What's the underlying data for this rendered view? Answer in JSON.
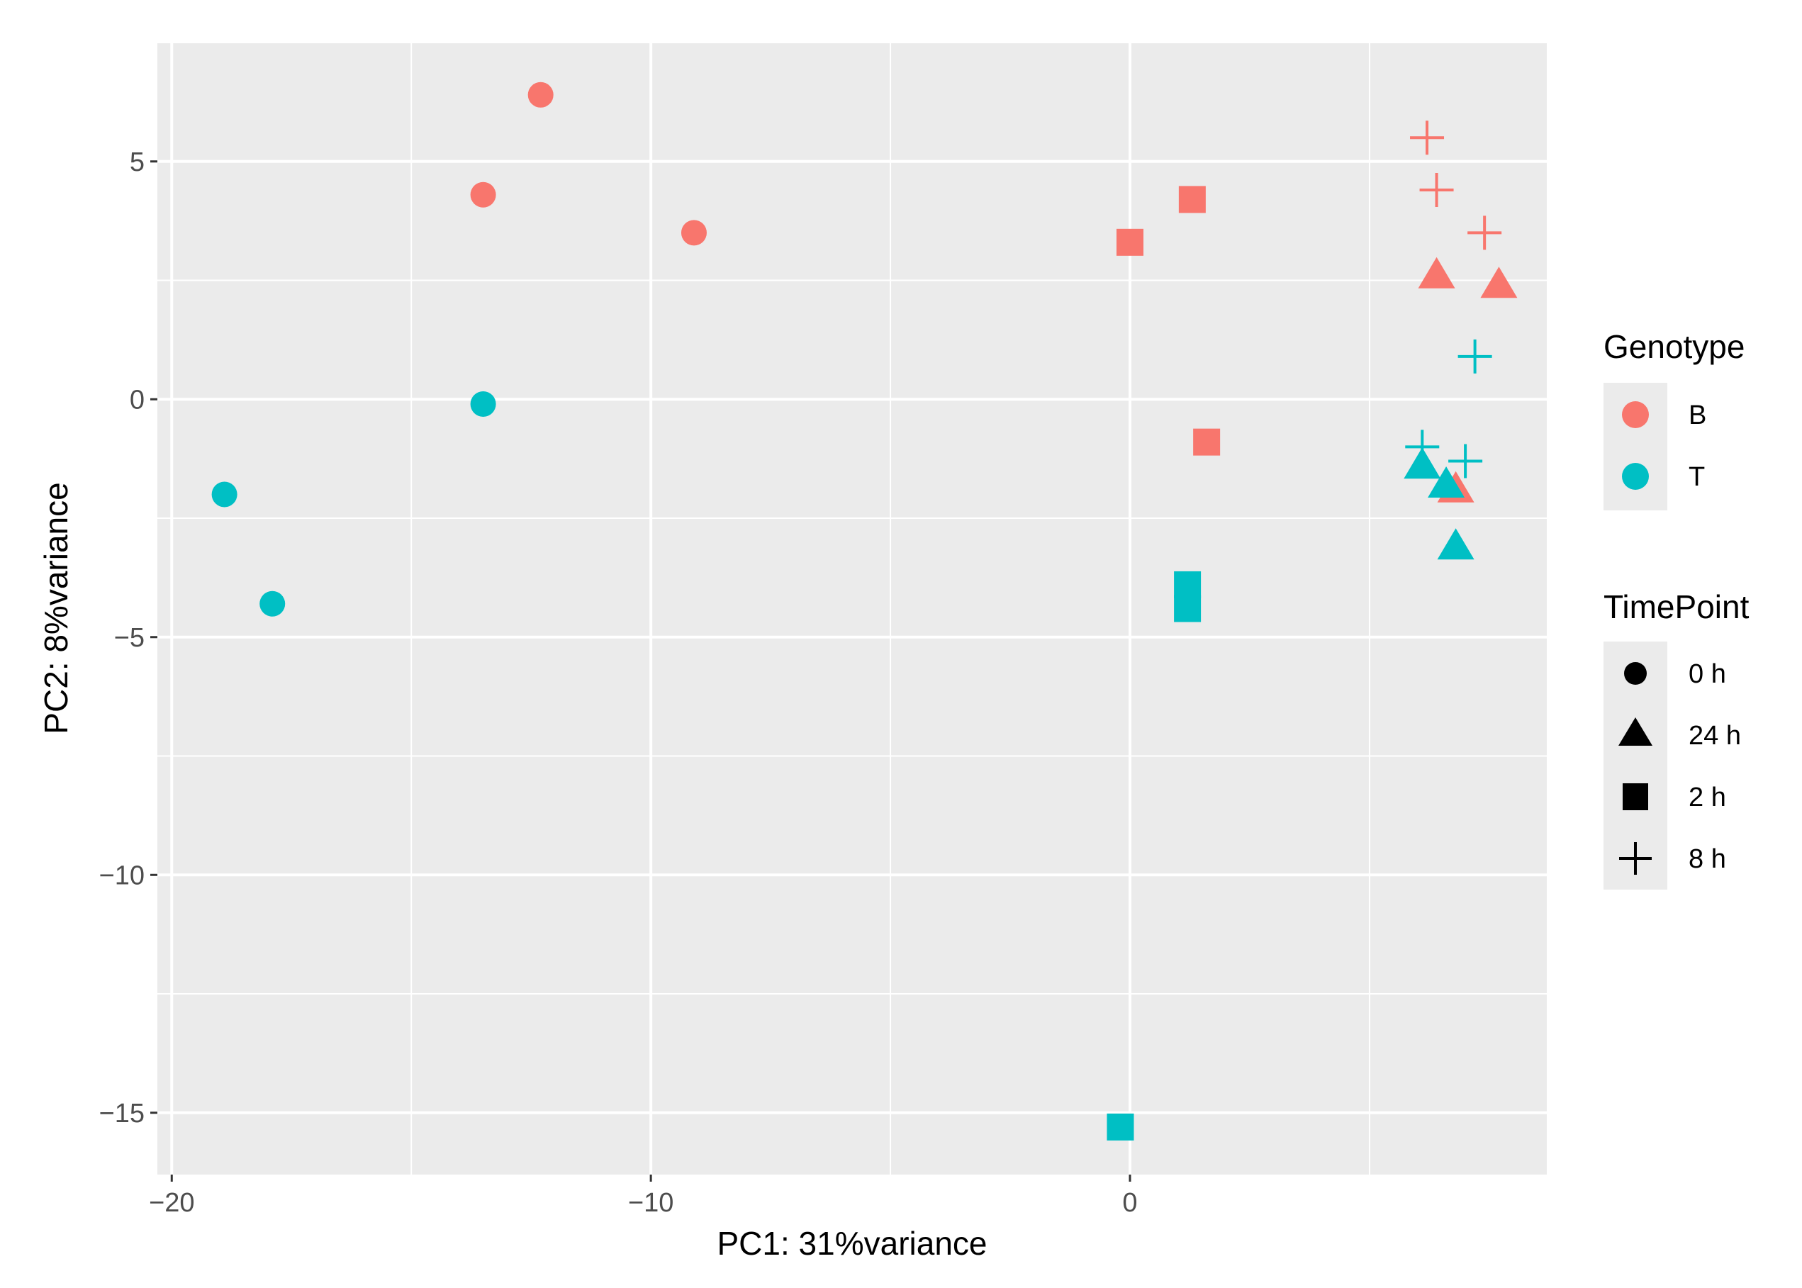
{
  "chart_data": {
    "type": "scatter",
    "title": "",
    "xlabel": "PC1: 31%variance",
    "ylabel": "PC2: 8%variance",
    "xlim": [
      -20.3,
      8.7
    ],
    "ylim": [
      -16.3,
      7.5
    ],
    "x_ticks": [
      -20,
      -10,
      0
    ],
    "x_tick_labels": [
      "−20",
      "−10",
      "0"
    ],
    "y_ticks": [
      5,
      0,
      -5,
      -10,
      -15
    ],
    "y_tick_labels": [
      "5",
      "0",
      "−5",
      "−10",
      "−15"
    ],
    "grid": true,
    "panel_background": "#ebebeb",
    "colors": {
      "B": "#f8766d",
      "T": "#00bfc4"
    },
    "legend": {
      "position": "right",
      "genotype": {
        "title": "Genotype",
        "items": [
          "B",
          "T"
        ]
      },
      "timepoint": {
        "title": "TimePoint",
        "items": [
          "0 h",
          "24 h",
          "2 h",
          "8 h"
        ]
      }
    },
    "points": [
      {
        "genotype": "B",
        "timepoint": "0 h",
        "x": -12.3,
        "y": 6.4
      },
      {
        "genotype": "B",
        "timepoint": "0 h",
        "x": -13.5,
        "y": 4.3
      },
      {
        "genotype": "B",
        "timepoint": "0 h",
        "x": -9.1,
        "y": 3.5
      },
      {
        "genotype": "T",
        "timepoint": "0 h",
        "x": -13.5,
        "y": -0.1
      },
      {
        "genotype": "T",
        "timepoint": "0 h",
        "x": -18.9,
        "y": -2.0
      },
      {
        "genotype": "T",
        "timepoint": "0 h",
        "x": -17.9,
        "y": -4.3
      },
      {
        "genotype": "B",
        "timepoint": "2 h",
        "x": 0.0,
        "y": 3.3
      },
      {
        "genotype": "B",
        "timepoint": "2 h",
        "x": 1.3,
        "y": 4.2
      },
      {
        "genotype": "B",
        "timepoint": "2 h",
        "x": 1.6,
        "y": -0.9
      },
      {
        "genotype": "T",
        "timepoint": "2 h",
        "x": 1.2,
        "y": -3.9
      },
      {
        "genotype": "T",
        "timepoint": "2 h",
        "x": 1.2,
        "y": -4.4
      },
      {
        "genotype": "T",
        "timepoint": "2 h",
        "x": -0.2,
        "y": -15.3
      },
      {
        "genotype": "B",
        "timepoint": "8 h",
        "x": 6.2,
        "y": 5.5
      },
      {
        "genotype": "B",
        "timepoint": "8 h",
        "x": 6.4,
        "y": 4.4
      },
      {
        "genotype": "B",
        "timepoint": "8 h",
        "x": 7.4,
        "y": 3.5
      },
      {
        "genotype": "T",
        "timepoint": "8 h",
        "x": 7.2,
        "y": 0.9
      },
      {
        "genotype": "T",
        "timepoint": "8 h",
        "x": 6.1,
        "y": -1.0
      },
      {
        "genotype": "T",
        "timepoint": "8 h",
        "x": 7.0,
        "y": -1.3
      },
      {
        "genotype": "B",
        "timepoint": "24 h",
        "x": 6.4,
        "y": 2.6
      },
      {
        "genotype": "B",
        "timepoint": "24 h",
        "x": 7.7,
        "y": 2.4
      },
      {
        "genotype": "B",
        "timepoint": "24 h",
        "x": 6.8,
        "y": -1.9
      },
      {
        "genotype": "T",
        "timepoint": "24 h",
        "x": 6.1,
        "y": -1.4
      },
      {
        "genotype": "T",
        "timepoint": "24 h",
        "x": 6.6,
        "y": -1.8
      },
      {
        "genotype": "T",
        "timepoint": "24 h",
        "x": 6.8,
        "y": -3.1
      }
    ]
  }
}
